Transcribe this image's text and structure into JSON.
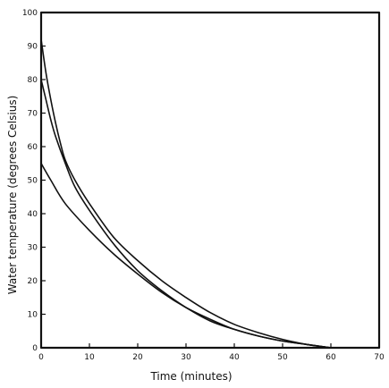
{
  "chart_data": {
    "type": "line",
    "title": "",
    "xlabel": "Time (minutes)",
    "ylabel": "Water temperature (degrees Celsius)",
    "xlim": [
      0,
      70
    ],
    "ylim": [
      0,
      100
    ],
    "xticks": [
      0,
      10,
      20,
      30,
      40,
      50,
      60,
      70
    ],
    "yticks": [
      0,
      10,
      20,
      30,
      40,
      50,
      60,
      70,
      80,
      90,
      100
    ],
    "xtick_labels": [
      "0",
      "10",
      "20",
      "30",
      "40",
      "50",
      "60",
      "70"
    ],
    "ytick_labels": [
      "0",
      "10",
      "20",
      "30",
      "40",
      "50",
      "60",
      "70",
      "80",
      "90",
      "100"
    ],
    "grid": false,
    "legend": "none",
    "series": [
      {
        "x": [
          0,
          1,
          2,
          3,
          4,
          5,
          7,
          10,
          15,
          20,
          25,
          30,
          35,
          40,
          45,
          50,
          55,
          60
        ],
        "values": [
          92,
          82,
          74,
          67,
          61,
          56,
          50,
          43,
          33,
          26,
          20,
          15,
          10.5,
          7,
          4.5,
          2.5,
          1,
          0
        ]
      },
      {
        "x": [
          0,
          1,
          2,
          3,
          5,
          7,
          10,
          15,
          20,
          25,
          30,
          35,
          40,
          45,
          50,
          55,
          60
        ],
        "values": [
          80,
          74,
          68,
          63,
          55,
          48,
          41,
          31,
          23,
          17,
          12,
          8,
          5.5,
          3.5,
          2,
          1,
          0
        ]
      },
      {
        "x": [
          0,
          2,
          5,
          10,
          15,
          20,
          25,
          30,
          35,
          40,
          45,
          50,
          55,
          60
        ],
        "values": [
          55,
          50,
          43,
          35,
          28,
          22,
          16.5,
          12,
          8.5,
          5.5,
          3.5,
          2,
          1,
          0
        ]
      }
    ]
  }
}
